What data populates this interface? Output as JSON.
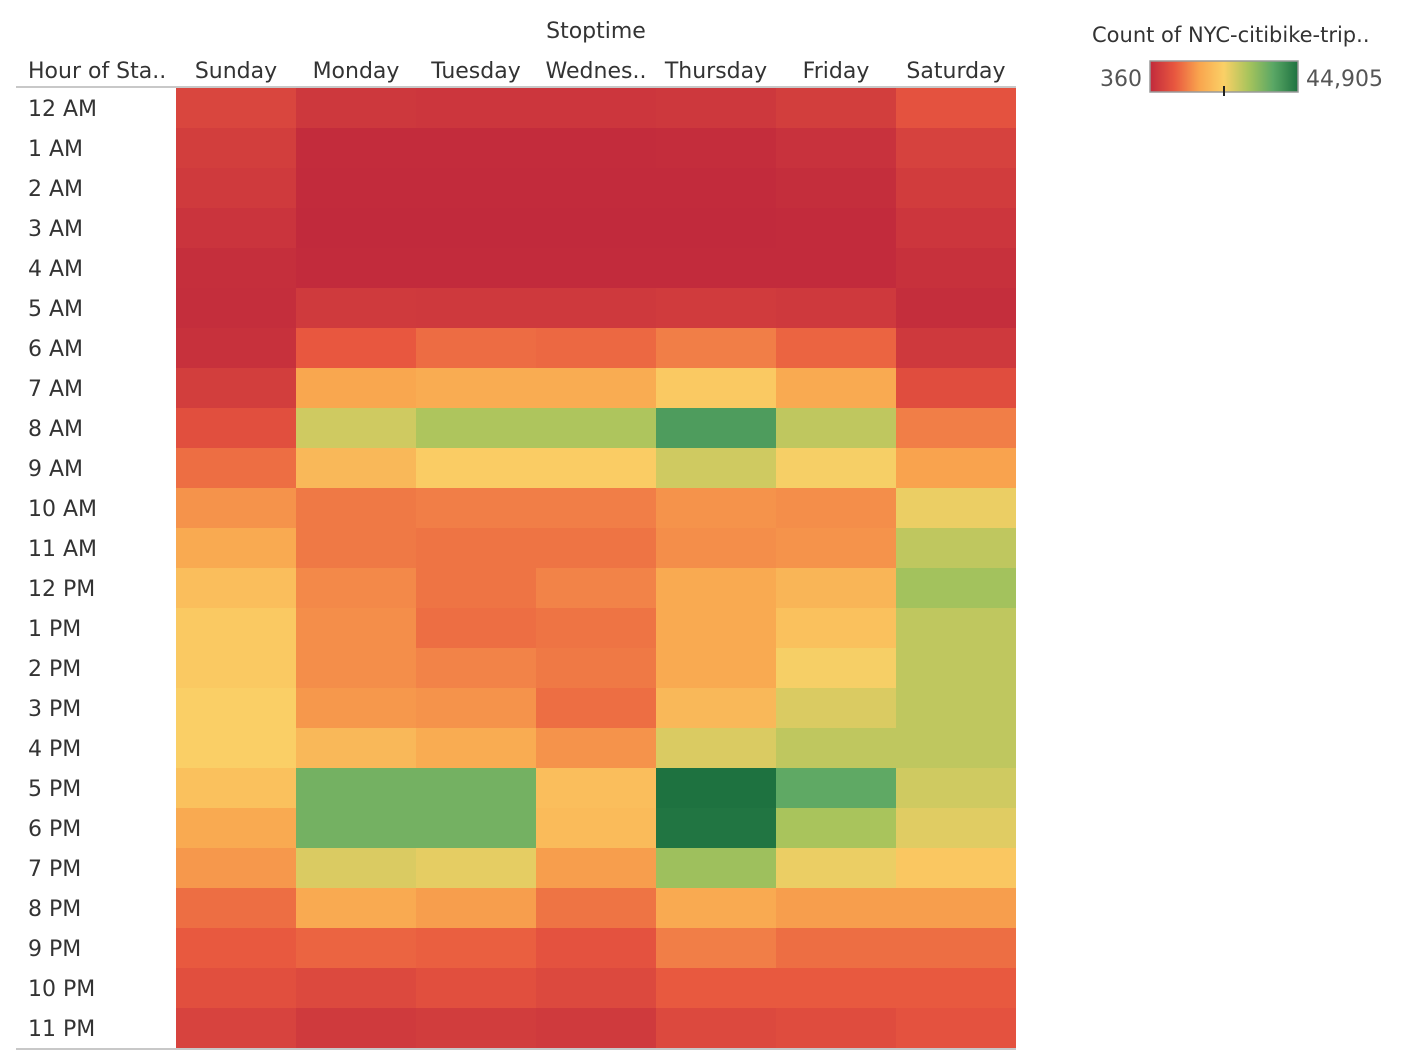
{
  "chart_data": {
    "type": "heatmap",
    "column_group_title": "Stoptime",
    "row_header": "Hour of Sta..",
    "columns": [
      "Sunday",
      "Monday",
      "Tuesday",
      "Wednes..",
      "Thursday",
      "Friday",
      "Saturday"
    ],
    "rows": [
      "12 AM",
      "1 AM",
      "2 AM",
      "3 AM",
      "4 AM",
      "5 AM",
      "6 AM",
      "7 AM",
      "8 AM",
      "9 AM",
      "10 AM",
      "11 AM",
      "12 PM",
      "1 PM",
      "2 PM",
      "3 PM",
      "4 PM",
      "5 PM",
      "6 PM",
      "7 PM",
      "8 PM",
      "9 PM",
      "10 PM",
      "11 PM"
    ],
    "values": [
      [
        5000,
        2600,
        2400,
        2400,
        2600,
        3600,
        7000
      ],
      [
        3600,
        700,
        700,
        700,
        900,
        1600,
        4400
      ],
      [
        3000,
        500,
        500,
        500,
        600,
        1000,
        3400
      ],
      [
        2000,
        400,
        400,
        400,
        400,
        600,
        2400
      ],
      [
        1200,
        500,
        500,
        500,
        500,
        600,
        1500
      ],
      [
        1000,
        3000,
        2800,
        2800,
        3200,
        2800,
        1000
      ],
      [
        1500,
        7800,
        9800,
        9400,
        11500,
        9000,
        2800
      ],
      [
        3600,
        15500,
        16500,
        16500,
        21500,
        16000,
        6200
      ],
      [
        6500,
        26500,
        29500,
        29500,
        39000,
        28000,
        11500
      ],
      [
        10000,
        18500,
        22000,
        22000,
        26500,
        23000,
        15000
      ],
      [
        13500,
        11000,
        11500,
        11500,
        13500,
        13000,
        24000
      ],
      [
        16000,
        11000,
        10500,
        10500,
        13000,
        13500,
        28000
      ],
      [
        19500,
        12500,
        10500,
        12000,
        16000,
        18000,
        30500
      ],
      [
        21500,
        13000,
        10000,
        10500,
        16000,
        20000,
        28000
      ],
      [
        21500,
        13000,
        12000,
        11000,
        16000,
        23000,
        28000
      ],
      [
        22500,
        14000,
        13500,
        10000,
        18500,
        25500,
        28000
      ],
      [
        22500,
        18500,
        16500,
        13500,
        25500,
        28000,
        28000
      ],
      [
        20000,
        35000,
        35000,
        19500,
        44905,
        37000,
        26500
      ],
      [
        16000,
        35000,
        35000,
        19000,
        44500,
        30000,
        25000
      ],
      [
        14000,
        25500,
        24500,
        14500,
        31000,
        24000,
        21000
      ],
      [
        10000,
        16000,
        14500,
        10500,
        16000,
        14500,
        14500
      ],
      [
        8000,
        9000,
        8500,
        7000,
        11500,
        10000,
        10000
      ],
      [
        6500,
        5500,
        6500,
        5500,
        8000,
        8000,
        8000
      ],
      [
        4500,
        3000,
        3500,
        3000,
        5500,
        6000,
        7000
      ]
    ],
    "color_legend": {
      "title": "Count of NYC-citibike-trip..",
      "min": 360,
      "max": 44905,
      "min_label": "360",
      "max_label": "44,905",
      "stops": [
        "#c12a3c",
        "#e8573f",
        "#f9a54e",
        "#fad066",
        "#a8c45c",
        "#5aa765",
        "#1e7240"
      ]
    }
  }
}
